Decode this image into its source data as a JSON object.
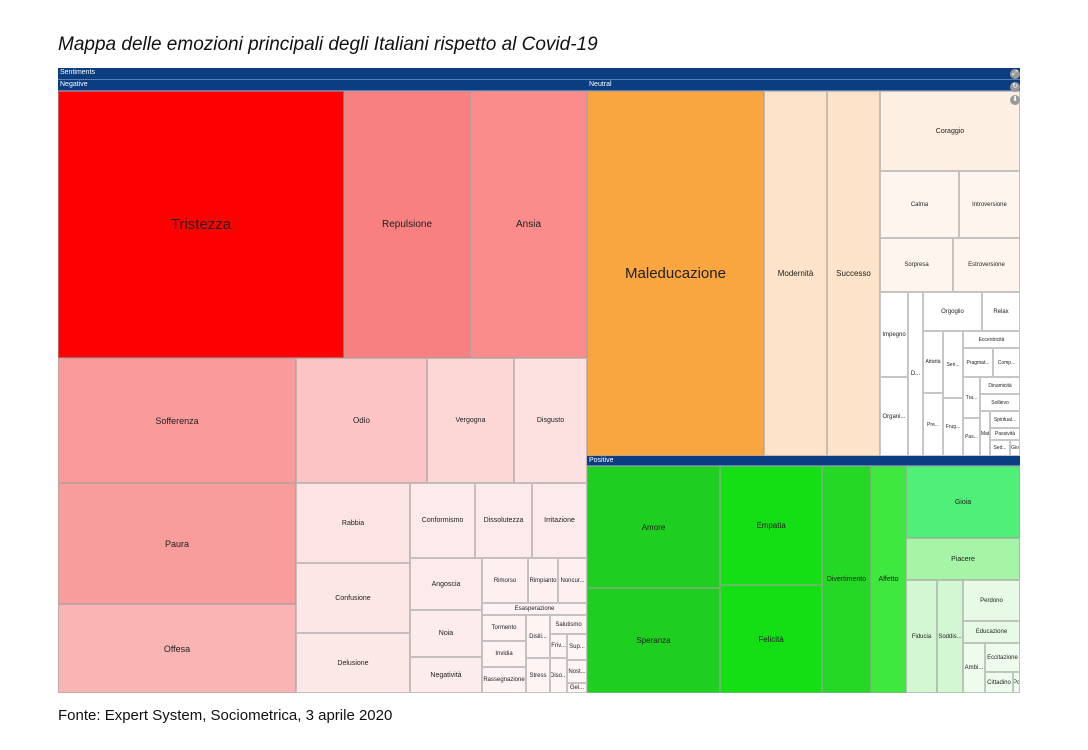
{
  "title": "Mappa delle emozioni principali degli Italiani rispetto al Covid-19",
  "source": "Fonte: Expert System, Sociometrica, 3 aprile 2020",
  "chart_data": {
    "type": "treemap",
    "root": "Sentiments",
    "groups": [
      {
        "name": "Negative",
        "color": "#ff0000",
        "items": [
          "Tristezza",
          "Repulsione",
          "Ansia",
          "Sofferenza",
          "Odio",
          "Vergogna",
          "Disgusto",
          "Paura",
          "Offesa",
          "Rabbia",
          "Confusione",
          "Delusione",
          "Conformismo",
          "Dissolutezza",
          "Irritazione",
          "Angoscia",
          "Noia",
          "Negatività",
          "Rimorso",
          "Rimpianto",
          "Noncur...",
          "Esasperazione",
          "Tormento",
          "Invidia",
          "Rassegnazione",
          "Disili...",
          "Stress",
          "Salutismo",
          "Friv...",
          "Diso...",
          "Sup...",
          "Nost...",
          "Gel..."
        ]
      },
      {
        "name": "Neutral",
        "color": "#f9a640",
        "items": [
          "Maleducazione",
          "Modernità",
          "Successo",
          "Coraggio",
          "Calma",
          "Introversione",
          "Sorpresa",
          "Estroversione",
          "Impegno",
          "Organi...",
          "D...",
          "Orgoglio",
          "Relax",
          "Attività",
          "Seri...",
          "Pre...",
          "Frug...",
          "Eccentricità",
          "Pragmat...",
          "Comp...",
          "Tra...",
          "Pas...",
          "Dinamicità",
          "Sollievo",
          "Mat",
          "Spiritual...",
          "Passività",
          "Sed...",
          "Gio"
        ]
      },
      {
        "name": "Positive",
        "color": "#1fd01f",
        "items": [
          "Amore",
          "Speranza",
          "Empatia",
          "Felicità",
          "Divertimento",
          "Affetto",
          "Gioia",
          "Piacere",
          "Fiducia",
          "Soddis...",
          "Perdono",
          "Educazione",
          "Ambi...",
          "Eccitazione",
          "Cittadino",
          "Pc"
        ]
      }
    ]
  },
  "icons": [
    "expand-icon",
    "reset-icon",
    "download-icon"
  ]
}
